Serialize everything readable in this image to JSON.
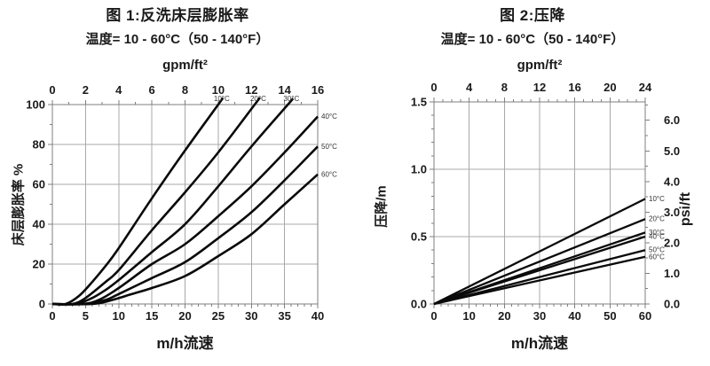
{
  "colors": {
    "curve": "#0a0a0a",
    "grid": "#a8a8a8",
    "axis": "#7f7f7f",
    "text": "#1a1a1a",
    "series_label_text": "#333333",
    "background": "#ffffff"
  },
  "chart_data": [
    {
      "type": "line",
      "title": "图 1:反洗床层膨胀率",
      "subtitle": "温度= 10 - 60°C（50 - 140°F）",
      "top_xlabel": "gpm/ft²",
      "xlabel": "m/h流速",
      "ylabel": "床层膨胀率 %",
      "grid": true,
      "axes": {
        "bottom": {
          "lim": [
            0,
            40
          ],
          "ticks": [
            0,
            5,
            10,
            15,
            20,
            25,
            30,
            35,
            40
          ],
          "minor_step": 1
        },
        "top": {
          "lim": [
            0,
            16
          ],
          "ticks": [
            0,
            2,
            4,
            6,
            8,
            10,
            12,
            14,
            16
          ],
          "minor_step": 1
        },
        "left": {
          "lim": [
            0,
            100
          ],
          "ticks": [
            0,
            20,
            40,
            60,
            80,
            100
          ],
          "minor_step": 10
        }
      },
      "series": [
        {
          "name": "10°C",
          "label_side": "top",
          "points": [
            [
              0,
              0
            ],
            [
              2,
              0
            ],
            [
              4,
              4
            ],
            [
              6,
              11
            ],
            [
              8,
              19
            ],
            [
              10,
              28
            ],
            [
              15,
              53
            ],
            [
              20,
              77
            ],
            [
              25,
              100
            ]
          ]
        },
        {
          "name": "20°C",
          "label_side": "top",
          "points": [
            [
              0,
              0
            ],
            [
              3,
              0
            ],
            [
              5,
              3
            ],
            [
              8,
              11
            ],
            [
              10,
              17
            ],
            [
              15,
              37
            ],
            [
              20,
              56
            ],
            [
              25,
              76
            ],
            [
              30.5,
              100
            ]
          ]
        },
        {
          "name": "30°C",
          "label_side": "top",
          "points": [
            [
              0,
              0
            ],
            [
              3.5,
              0
            ],
            [
              6,
              3
            ],
            [
              8,
              7
            ],
            [
              10,
              12
            ],
            [
              15,
              26
            ],
            [
              20,
              40
            ],
            [
              25,
              59
            ],
            [
              30,
              79
            ],
            [
              35.5,
              100
            ]
          ]
        },
        {
          "name": "40°C",
          "label_side": "right",
          "points": [
            [
              0,
              0
            ],
            [
              4.5,
              0
            ],
            [
              7,
              2
            ],
            [
              10,
              8
            ],
            [
              15,
              20
            ],
            [
              20,
              30
            ],
            [
              25,
              44
            ],
            [
              30,
              59
            ],
            [
              35,
              76
            ],
            [
              40,
              94
            ]
          ]
        },
        {
          "name": "50°C",
          "label_side": "right",
          "points": [
            [
              0,
              0
            ],
            [
              5,
              0
            ],
            [
              8,
              2
            ],
            [
              10,
              5
            ],
            [
              15,
              13
            ],
            [
              20,
              21
            ],
            [
              25,
              33
            ],
            [
              30,
              46
            ],
            [
              35,
              62
            ],
            [
              40,
              79
            ]
          ]
        },
        {
          "name": "60°C",
          "label_side": "right",
          "points": [
            [
              0,
              0
            ],
            [
              6,
              0
            ],
            [
              9,
              2
            ],
            [
              12,
              5
            ],
            [
              15,
              8
            ],
            [
              20,
              14
            ],
            [
              25,
              24
            ],
            [
              30,
              35
            ],
            [
              35,
              50
            ],
            [
              40,
              65
            ]
          ]
        }
      ]
    },
    {
      "type": "line",
      "title": "图 2:压降",
      "subtitle": "温度= 10 - 60°C（50 - 140°F）",
      "top_xlabel": "gpm/ft²",
      "xlabel": "m/h流速",
      "ylabel": "压降/m",
      "right_ylabel": "psi/ft",
      "grid": true,
      "axes": {
        "bottom": {
          "lim": [
            0,
            60
          ],
          "ticks": [
            0,
            10,
            20,
            30,
            40,
            50,
            60
          ],
          "minor_step": 2
        },
        "top": {
          "lim": [
            0,
            24
          ],
          "ticks": [
            0,
            4,
            8,
            12,
            16,
            20,
            24
          ],
          "minor_step": 1
        },
        "left": {
          "lim": [
            0,
            1.5
          ],
          "ticks": [
            0,
            0.5,
            1,
            1.5
          ],
          "labels": [
            "0.0",
            "0.5",
            "1.0",
            "1.5"
          ],
          "minor_step": 0.1
        },
        "right": {
          "lim": [
            0,
            6.6
          ],
          "ticks": [
            0,
            1,
            2,
            3,
            4,
            5,
            6
          ],
          "labels": [
            "0.0",
            "1.0",
            "2.0",
            "3.0",
            "4.0",
            "5.0",
            "6.0"
          ],
          "minor_step": 0.5
        }
      },
      "series": [
        {
          "name": "10°C",
          "label_side": "right",
          "points": [
            [
              0,
              0
            ],
            [
              60,
              0.78
            ]
          ]
        },
        {
          "name": "20°C",
          "label_side": "right",
          "points": [
            [
              0,
              0
            ],
            [
              60,
              0.63
            ]
          ]
        },
        {
          "name": "30°C",
          "label_side": "right",
          "points": [
            [
              0,
              0
            ],
            [
              60,
              0.53
            ]
          ]
        },
        {
          "name": "40°C",
          "label_side": "right",
          "points": [
            [
              0,
              0
            ],
            [
              60,
              0.5
            ]
          ]
        },
        {
          "name": "50°C",
          "label_side": "right",
          "points": [
            [
              0,
              0
            ],
            [
              60,
              0.4
            ]
          ]
        },
        {
          "name": "60°C",
          "label_side": "right",
          "points": [
            [
              0,
              0
            ],
            [
              60,
              0.35
            ]
          ]
        }
      ]
    }
  ]
}
